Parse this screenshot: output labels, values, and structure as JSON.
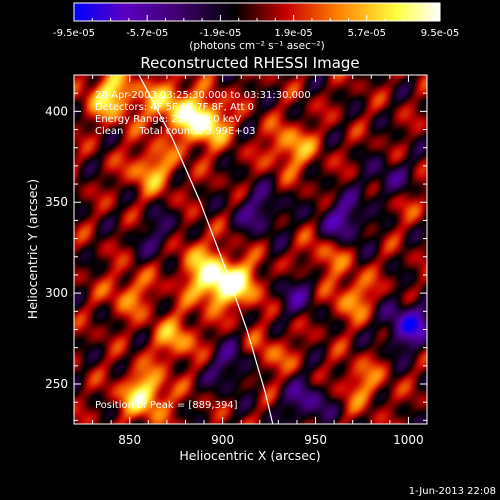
{
  "chart_data": {
    "type": "heatmap",
    "title": "Reconstructed RHESSI Image",
    "xlabel": "Heliocentric X (arcsec)",
    "ylabel": "Heliocentric Y (arcsec)",
    "xlim": [
      820,
      1010
    ],
    "ylim": [
      228,
      420
    ],
    "x_ticks": [
      850,
      900,
      950,
      1000
    ],
    "y_ticks": [
      250,
      300,
      350,
      400
    ],
    "x_tick_labels": [
      "850",
      "900",
      "950",
      "1000"
    ],
    "y_tick_labels": [
      "250",
      "300",
      "350",
      "400"
    ],
    "colorbar": {
      "min": -9.5e-05,
      "max": 9.5e-05,
      "tick_labels": [
        "-9.5e-05",
        "-5.7e-05",
        "-1.9e-05",
        "1.9e-05",
        "5.7e-05",
        "9.5e-05"
      ],
      "tick_values": [
        -9.5e-05,
        -5.7e-05,
        -1.9e-05,
        1.9e-05,
        5.7e-05,
        9.5e-05
      ],
      "units_label": "(photons cm⁻² s⁻¹ asec⁻²)",
      "colors": [
        "#0000ff",
        "#5a00c0",
        "#400070",
        "#000000",
        "#c80000",
        "#ff8000",
        "#ffff40",
        "#ffffff"
      ]
    },
    "annotations": {
      "time_range": "28-Apr-2003 03:25:30.000 to 03:31:30.000",
      "detectors": "Detectors: 4F 5F 6F 7F 8F, Att 0",
      "energy_range": "Energy Range: 25.0-50.0 keV",
      "clean_counts": "Clean     Total counts: 3.99E+03",
      "peak_position": "Position of Peak = [889,394]"
    },
    "sources": [
      {
        "x": 889,
        "y": 394,
        "amplitude": 1.0
      },
      {
        "x": 895,
        "y": 307,
        "amplitude": 0.95
      },
      {
        "x": 858,
        "y": 244,
        "amplitude": 0.8
      },
      {
        "x": 840,
        "y": 409,
        "amplitude": 0.75
      },
      {
        "x": 862,
        "y": 368,
        "amplitude": 0.55
      },
      {
        "x": 910,
        "y": 305,
        "amplitude": 0.6
      },
      {
        "x": 875,
        "y": 275,
        "amplitude": 0.5
      },
      {
        "x": 880,
        "y": 325,
        "amplitude": 0.45
      },
      {
        "x": 937,
        "y": 380,
        "amplitude": 0.55
      },
      {
        "x": 970,
        "y": 298,
        "amplitude": 0.45
      },
      {
        "x": 975,
        "y": 250,
        "amplitude": 0.4
      },
      {
        "x": 955,
        "y": 320,
        "amplitude": 0.35
      },
      {
        "x": 925,
        "y": 265,
        "amplitude": 0.35
      },
      {
        "x": 995,
        "y": 352,
        "amplitude": 0.3
      },
      {
        "x": 870,
        "y": 405,
        "amplitude": 0.6
      },
      {
        "x": 850,
        "y": 300,
        "amplitude": 0.4
      },
      {
        "x": 965,
        "y": 340,
        "amplitude": -0.6
      },
      {
        "x": 1000,
        "y": 282,
        "amplitude": -0.8
      },
      {
        "x": 990,
        "y": 360,
        "amplitude": -0.5
      },
      {
        "x": 945,
        "y": 240,
        "amplitude": -0.5
      },
      {
        "x": 920,
        "y": 345,
        "amplitude": -0.45
      },
      {
        "x": 940,
        "y": 300,
        "amplitude": -0.4
      },
      {
        "x": 870,
        "y": 330,
        "amplitude": -0.5
      },
      {
        "x": 905,
        "y": 260,
        "amplitude": -0.45
      }
    ],
    "limb_curve": [
      {
        "x": 855,
        "y": 420
      },
      {
        "x": 873,
        "y": 385
      },
      {
        "x": 888,
        "y": 350
      },
      {
        "x": 901,
        "y": 315
      },
      {
        "x": 913,
        "y": 280
      },
      {
        "x": 923,
        "y": 245
      },
      {
        "x": 927,
        "y": 228
      }
    ]
  },
  "footer": {
    "timestamp": "1-Jun-2013 22:08"
  }
}
